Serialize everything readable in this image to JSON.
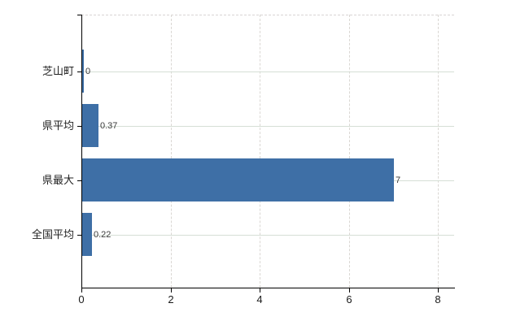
{
  "chart_data": {
    "type": "bar",
    "orientation": "horizontal",
    "title": "",
    "xlabel": "",
    "ylabel": "",
    "categories": [
      "芝山町",
      "県平均",
      "県最大",
      "全国平均"
    ],
    "values": [
      0,
      0.37,
      7,
      0.22
    ],
    "value_labels": [
      "0",
      "0.37",
      "7",
      "0.22"
    ],
    "xlim": [
      0,
      8
    ],
    "x_ticks": [
      0,
      2,
      4,
      6,
      8
    ],
    "x_tick_labels": [
      "0",
      "2",
      "4",
      "6",
      "8"
    ],
    "legend": "none",
    "grid": {
      "horizontal": "solid, one line per category",
      "vertical": "dashed, at each x tick except 0"
    },
    "colors": {
      "bar": "#3e6fa6",
      "horizontal_gridline": "#d5dfd5",
      "vertical_gridline": "#dad7d3",
      "plot_top_border": "#d9d4d4",
      "axis": "#000000",
      "category_text": "#222222",
      "value_text": "#3a3a3a",
      "tick_text": "#1a1a1a",
      "background": "#ffffff"
    }
  }
}
